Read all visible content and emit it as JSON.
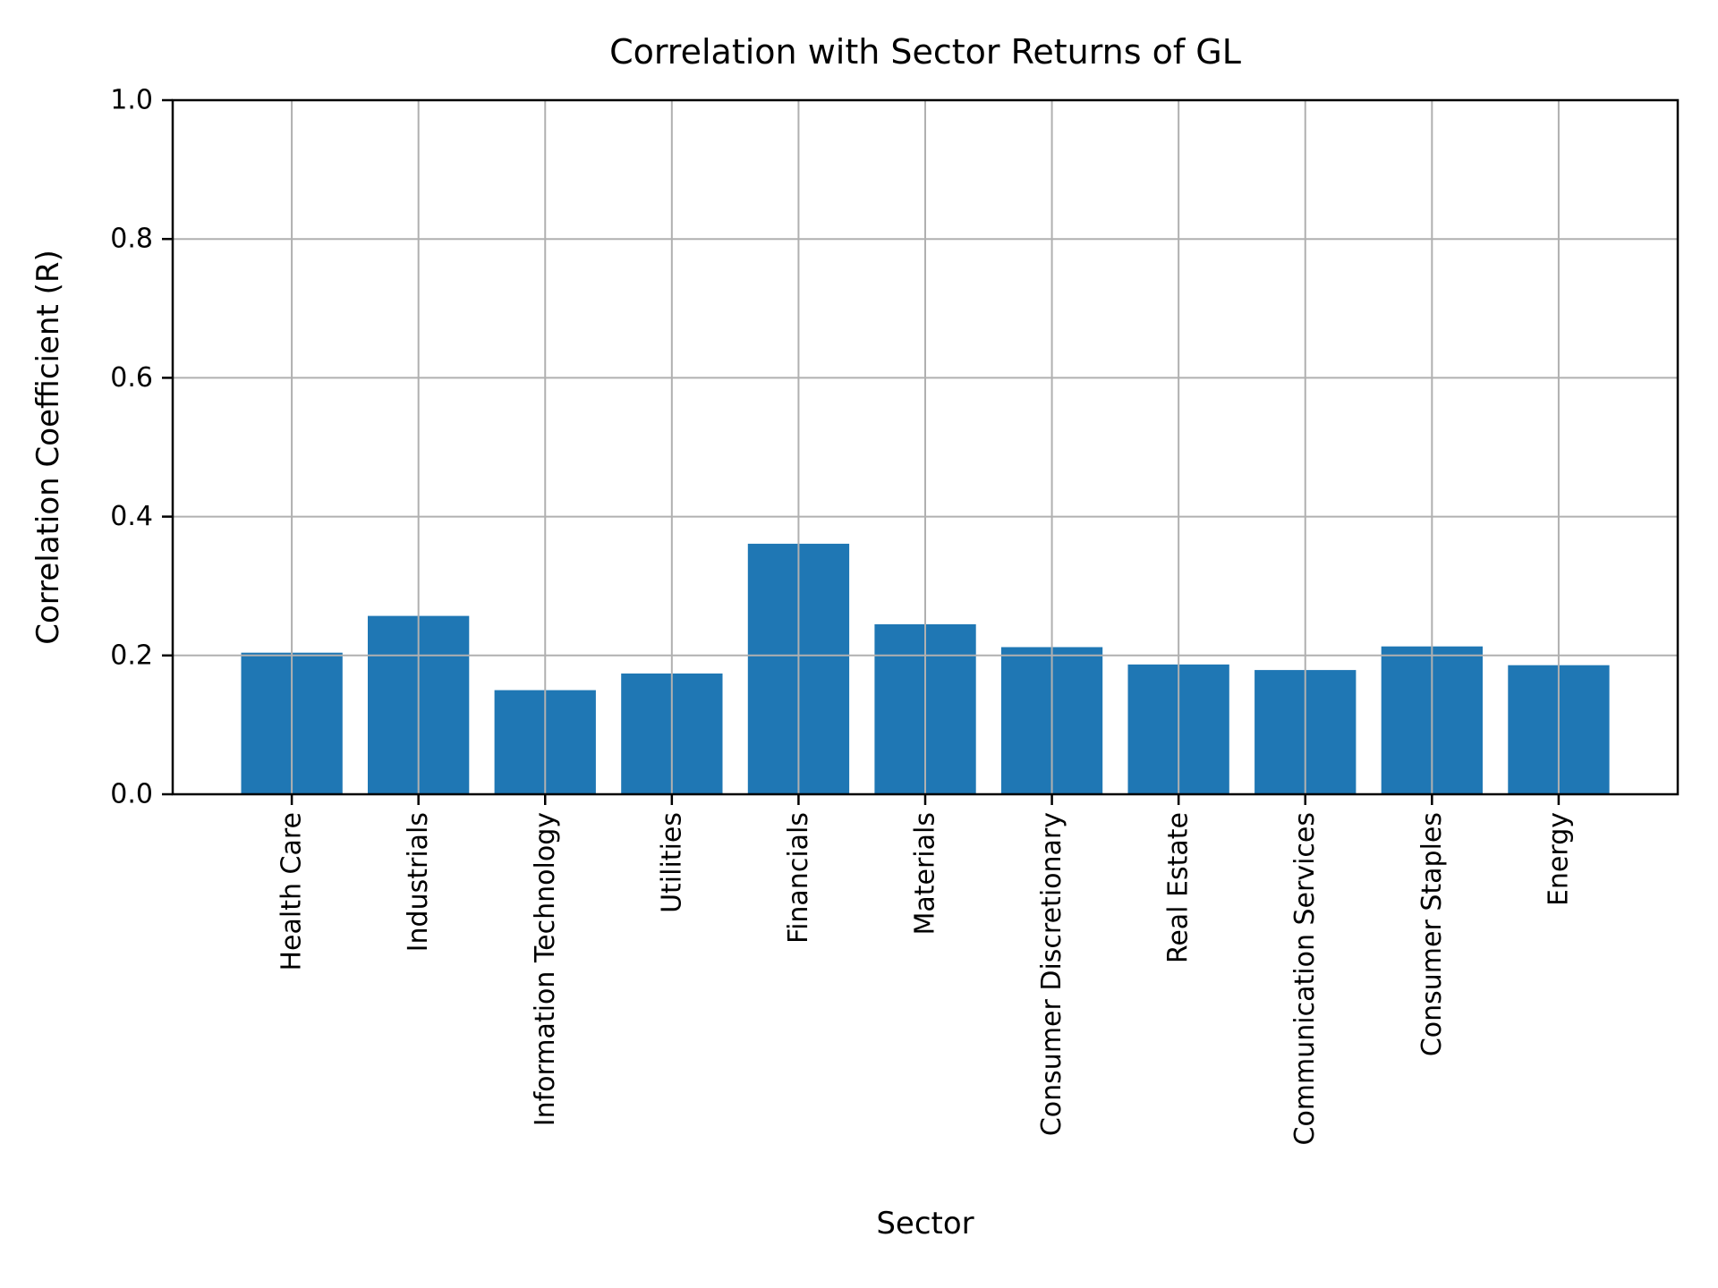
{
  "chart_data": {
    "type": "bar",
    "title": "Correlation with Sector Returns of GL",
    "xlabel": "Sector",
    "ylabel": "Correlation Coefficient (R)",
    "categories": [
      "Health Care",
      "Industrials",
      "Information Technology",
      "Utilities",
      "Financials",
      "Materials",
      "Consumer Discretionary",
      "Real Estate",
      "Communication Services",
      "Consumer Staples",
      "Energy"
    ],
    "values": [
      0.204,
      0.257,
      0.15,
      0.174,
      0.361,
      0.245,
      0.212,
      0.187,
      0.179,
      0.213,
      0.186
    ],
    "ylim": [
      0.0,
      1.0
    ],
    "yticks": [
      0.0,
      0.2,
      0.4,
      0.6,
      0.8,
      1.0
    ],
    "grid": true,
    "legend": "none",
    "bar_color": "#1f77b4",
    "grid_color": "#b0b0b0",
    "axis_color": "#000000",
    "text_color": "#000000",
    "background_color": "#ffffff",
    "x_tick_label_rotation": 90
  }
}
